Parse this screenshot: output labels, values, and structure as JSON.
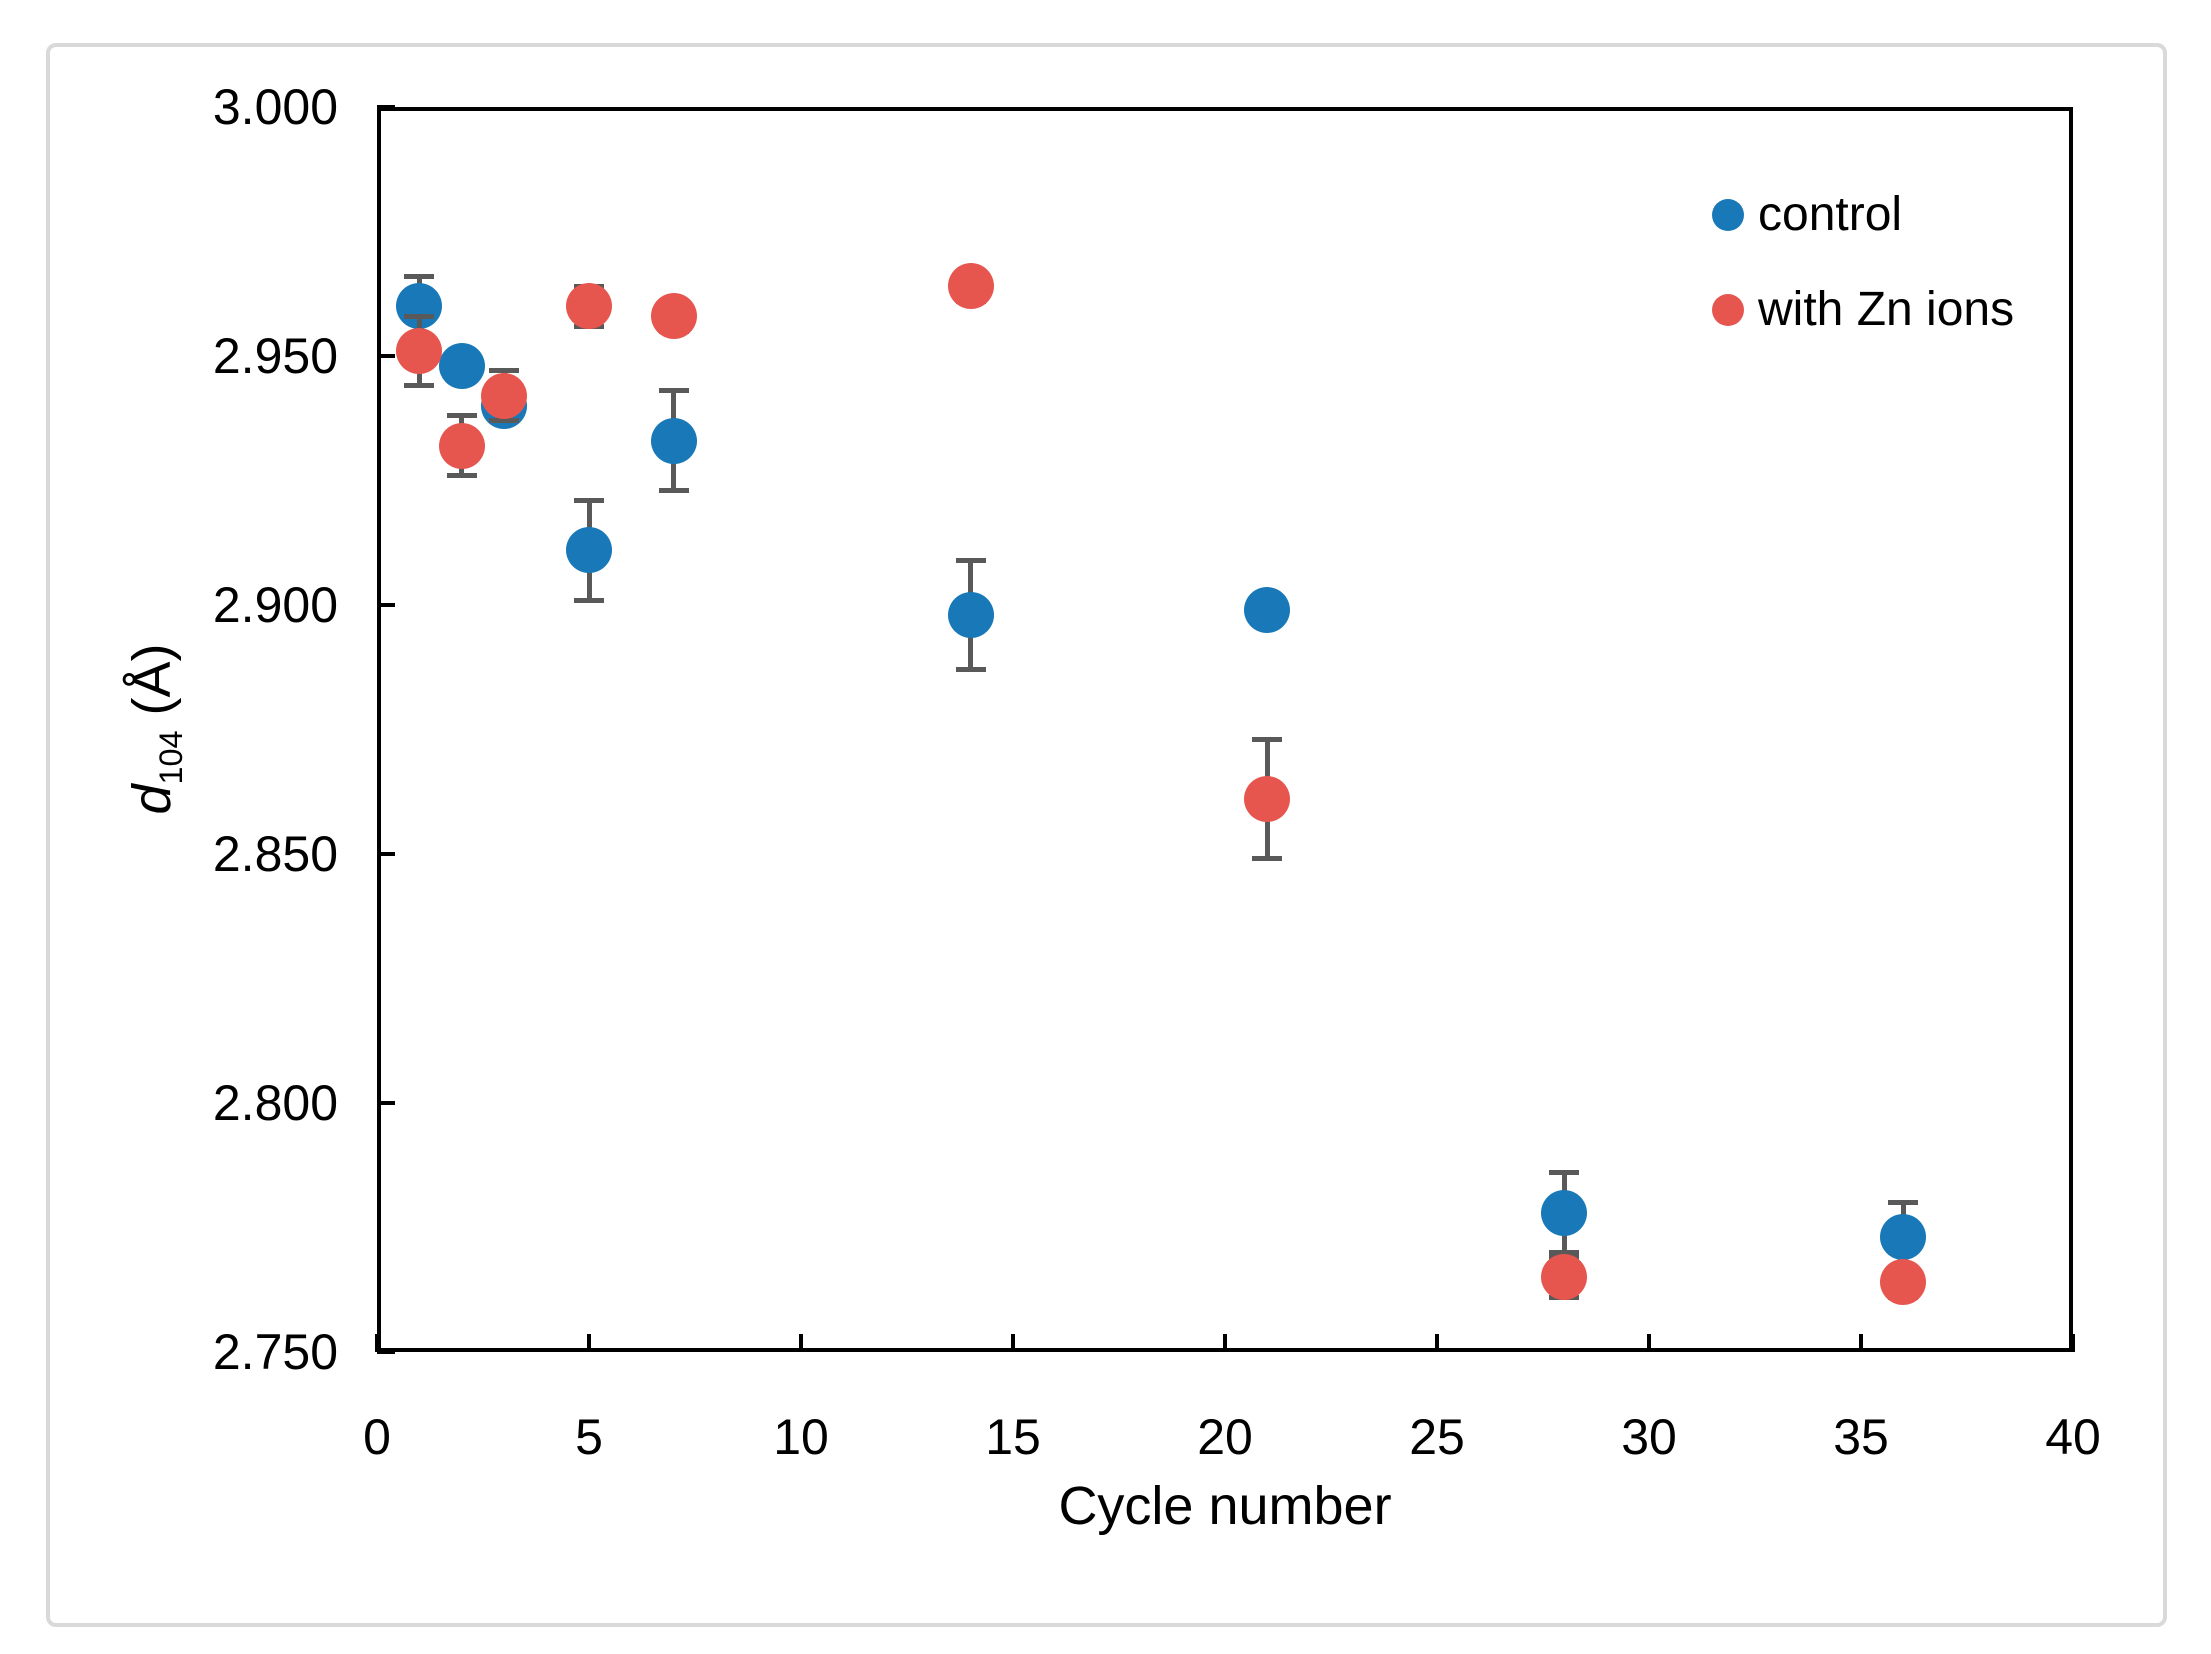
{
  "figure": {
    "background_color": "#ffffff",
    "frame_color": "#d9d9d9",
    "axis_color": "#000000",
    "error_bar_color": "#595959"
  },
  "chart_data": {
    "type": "scatter",
    "title": "",
    "xlabel": "Cycle number",
    "ylabel": {
      "symbol": "d",
      "subscript": "104",
      "unit": " (Å)"
    },
    "xlim": [
      0,
      40
    ],
    "ylim": [
      2.75,
      3.0
    ],
    "x_ticks": [
      0,
      5,
      10,
      15,
      20,
      25,
      30,
      35,
      40
    ],
    "y_ticks": [
      2.75,
      2.8,
      2.85,
      2.9,
      2.95,
      3.0
    ],
    "y_tick_decimals": 3,
    "grid": false,
    "legend_position": "top-right-inside",
    "marker_diameter_px": 46,
    "series": [
      {
        "name": "control",
        "color": "#1878b8",
        "x": [
          1,
          2,
          3,
          5,
          7,
          14,
          21,
          28,
          36
        ],
        "y": [
          2.96,
          2.948,
          2.94,
          2.911,
          2.933,
          2.898,
          2.899,
          2.778,
          2.773
        ],
        "yerr": [
          0.006,
          0.003,
          0.003,
          0.01,
          0.01,
          0.011,
          0.003,
          0.008,
          0.007
        ]
      },
      {
        "name": "with Zn ions",
        "color": "#e6564f",
        "x": [
          1,
          2,
          3,
          5,
          7,
          14,
          21,
          28,
          36
        ],
        "y": [
          2.951,
          2.932,
          2.942,
          2.96,
          2.958,
          2.964,
          2.861,
          2.765,
          2.764
        ],
        "yerr": [
          0.007,
          0.006,
          0.005,
          0.004,
          0.003,
          0.003,
          0.012,
          0.004,
          0.003
        ]
      }
    ]
  }
}
